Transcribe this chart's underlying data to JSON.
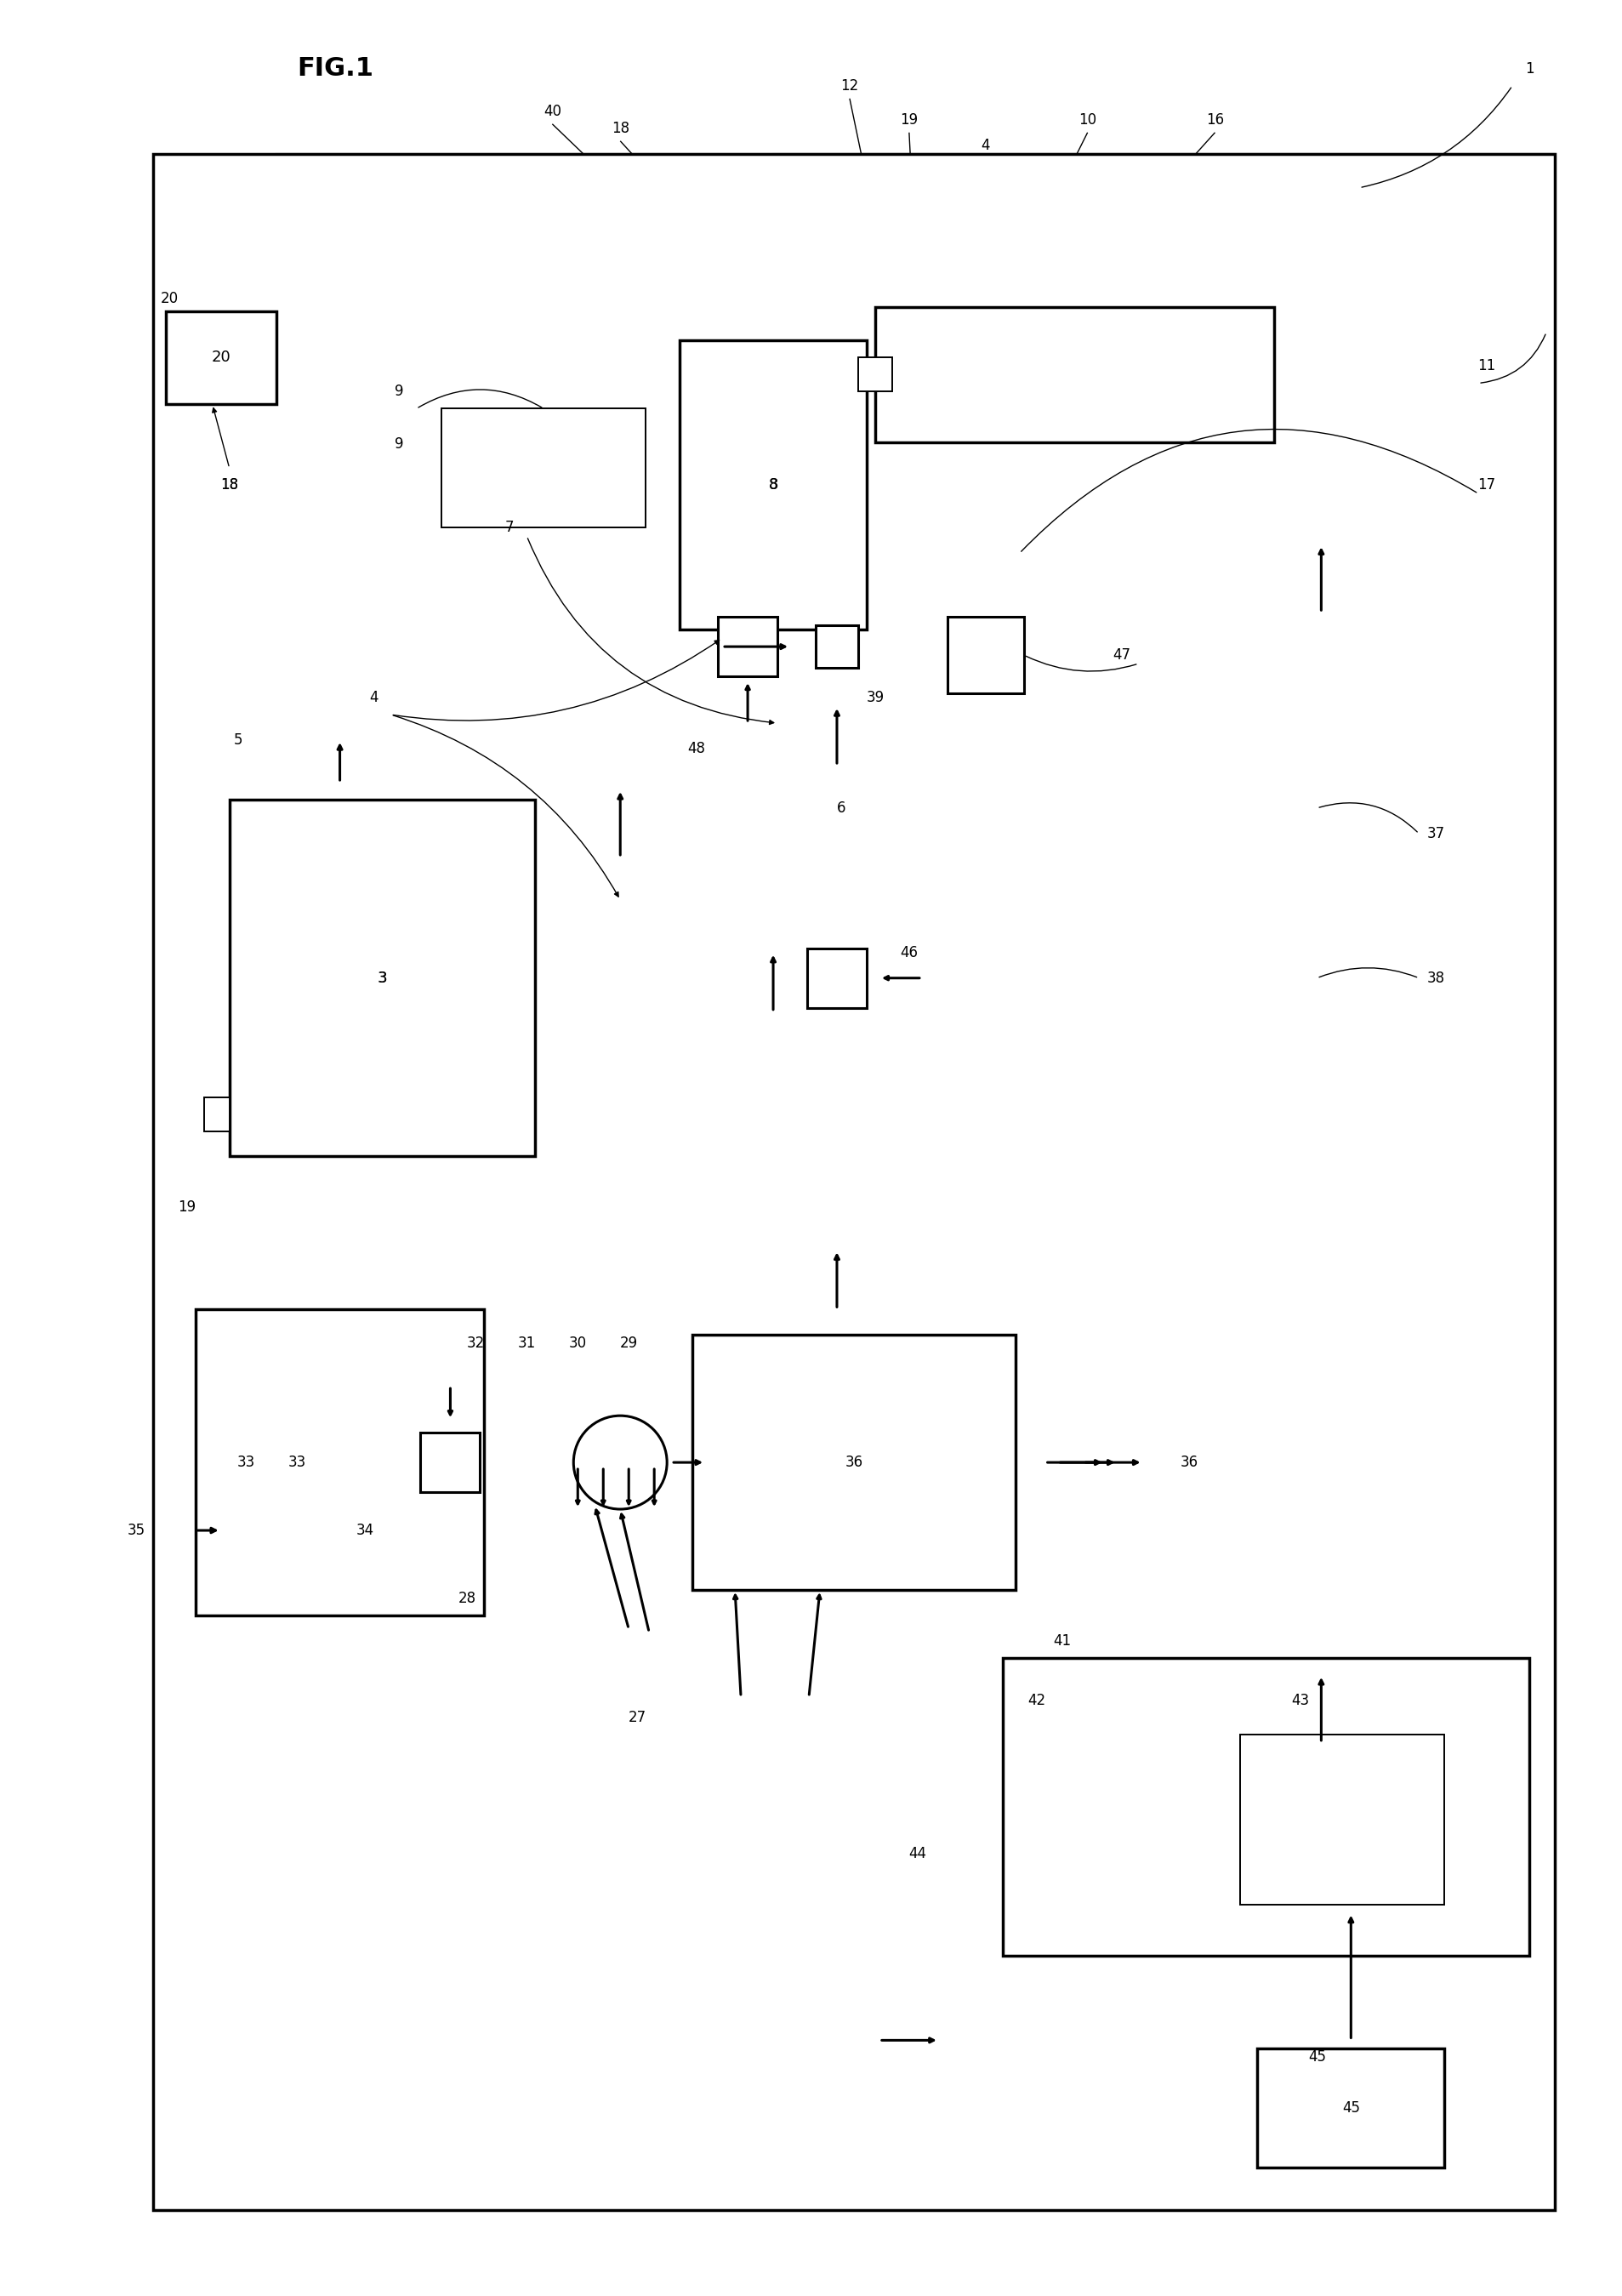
{
  "bg": "#ffffff",
  "lc": "#000000",
  "fig_label": "FIG.1",
  "lw_thick": 2.2,
  "lw_thin": 1.4,
  "lw_ref": 1.0,
  "fs_label": 12,
  "fs_fig": 22,
  "fs_num": 12
}
